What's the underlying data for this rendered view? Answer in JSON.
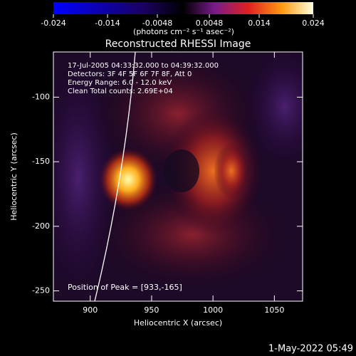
{
  "chart_data": {
    "type": "image",
    "title": "Reconstructed RHESSI Image",
    "colorbar": {
      "label": "(photons cm⁻² s⁻¹ asec⁻²)",
      "lim": [
        -0.024,
        0.024
      ],
      "ticks": [
        -0.024,
        -0.014,
        -0.0048,
        0.0048,
        0.014,
        0.024
      ]
    },
    "annotations": [
      "17-Jul-2005 04:33:32.000 to 04:39:32.000",
      "Detectors: 3F 4F 5F 6F 7F 8F, Att 0",
      "Energy Range: 6.0 - 12.0 keV",
      "Clean     Total counts: 2.69E+04"
    ],
    "peak_label": "Position of Peak = [933,-165]",
    "x_label": "Heliocentric X (arcsec)",
    "y_label": "Heliocentric Y (arcsec)",
    "xlim": [
      870,
      1073
    ],
    "xticks": [
      900,
      950,
      1000,
      1050
    ],
    "ylim": [
      -258,
      -65
    ],
    "yticks": [
      -100,
      -150,
      -200,
      -250
    ],
    "timestamp": "1-May-2022 05:49"
  }
}
